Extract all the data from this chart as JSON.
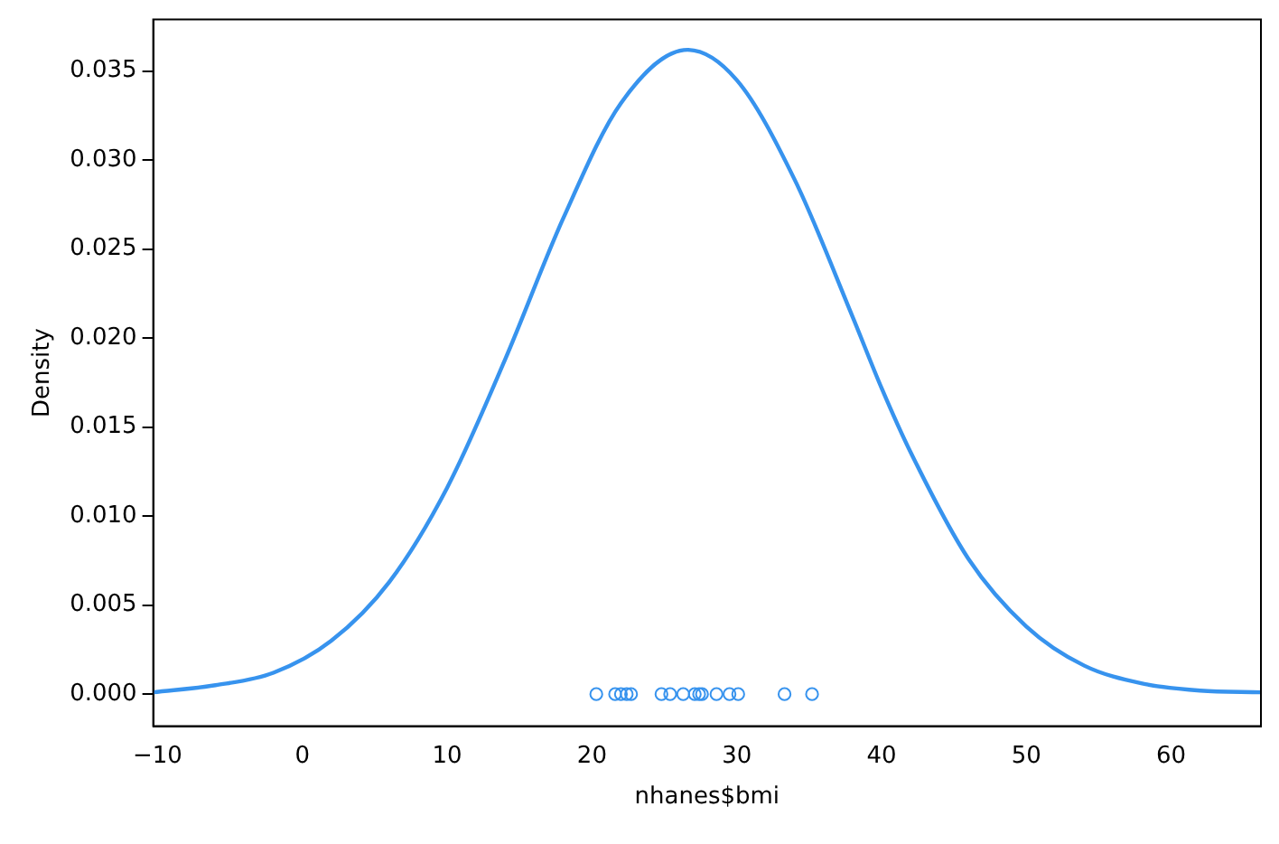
{
  "chart_data": {
    "type": "line",
    "xlabel": "nhanes$bmi",
    "ylabel": "Density",
    "xlim": [
      -10.3,
      66.2
    ],
    "ylim": [
      -0.0018,
      0.0379
    ],
    "xticks": [
      {
        "value": -10,
        "label": "−10"
      },
      0,
      10,
      20,
      30,
      40,
      50,
      60
    ],
    "yticks": [
      {
        "value": 0,
        "label": "0.000"
      },
      {
        "value": 0.005,
        "label": "0.005"
      },
      {
        "value": 0.01,
        "label": "0.010"
      },
      {
        "value": 0.015,
        "label": "0.015"
      },
      {
        "value": 0.02,
        "label": "0.020"
      },
      {
        "value": 0.025,
        "label": "0.025"
      },
      {
        "value": 0.03,
        "label": "0.030"
      },
      {
        "value": 0.035,
        "label": "0.035"
      }
    ],
    "grid": false,
    "legend": false,
    "series": [
      {
        "color": "#3793ee",
        "marker": "none",
        "line_style": "solid",
        "x": [
          -10.3,
          -6,
          -2,
          2,
          6,
          10,
          14,
          18,
          22,
          26.6,
          30,
          34,
          38,
          40,
          42,
          46,
          50,
          54,
          58,
          62,
          66.2
        ],
        "values": [
          0.0001,
          0.0005,
          0.0012,
          0.003,
          0.0063,
          0.0116,
          0.0188,
          0.0267,
          0.0332,
          0.0362,
          0.0345,
          0.0289,
          0.0212,
          0.0172,
          0.0136,
          0.0076,
          0.0038,
          0.0016,
          0.0006,
          0.0002,
          0.0001
        ]
      },
      {
        "type": "scatter",
        "color": "#3793ee",
        "marker": "circle",
        "x": [
          20.3,
          21.6,
          22.0,
          22.4,
          22.7,
          24.8,
          25.4,
          26.3,
          27.1,
          27.4,
          27.6,
          28.6,
          29.5,
          30.1,
          33.3,
          35.2
        ],
        "values": [
          0,
          0,
          0,
          0,
          0,
          0,
          0,
          0,
          0,
          0,
          0,
          0,
          0,
          0,
          0,
          0
        ]
      }
    ]
  }
}
